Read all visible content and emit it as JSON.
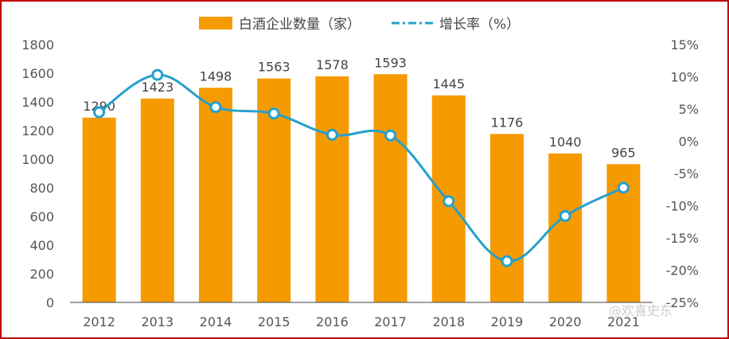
{
  "chart_data": {
    "type": "bar",
    "categories": [
      "2012",
      "2013",
      "2014",
      "2015",
      "2016",
      "2017",
      "2018",
      "2019",
      "2020",
      "2021"
    ],
    "series": [
      {
        "name": "白酒企业数量（家）",
        "type": "bar",
        "axis": "left",
        "values": [
          1290,
          1423,
          1498,
          1563,
          1578,
          1593,
          1445,
          1176,
          1040,
          965
        ],
        "color": "#f59a00"
      },
      {
        "name": "增长率（%）",
        "type": "line",
        "axis": "right",
        "values": [
          4.5,
          10.3,
          5.3,
          4.3,
          1.0,
          0.9,
          -9.3,
          -18.6,
          -11.6,
          -7.2
        ],
        "color": "#26a0cc"
      }
    ],
    "left_axis": {
      "ylim": [
        0,
        1800
      ],
      "ticks": [
        "0",
        "200",
        "400",
        "600",
        "800",
        "1000",
        "1200",
        "1400",
        "1600",
        "1800"
      ]
    },
    "right_axis": {
      "ylim": [
        -25,
        15
      ],
      "ticks": [
        "-25%",
        "-20%",
        "-15%",
        "-10%",
        "-5%",
        "0%",
        "5%",
        "10%",
        "15%"
      ]
    },
    "data_labels": [
      "1290",
      "1423",
      "1498",
      "1563",
      "1578",
      "1593",
      "1445",
      "1176",
      "1040",
      "965"
    ],
    "legend_position": "top",
    "grid": false
  },
  "watermark": "@欢喜史东"
}
